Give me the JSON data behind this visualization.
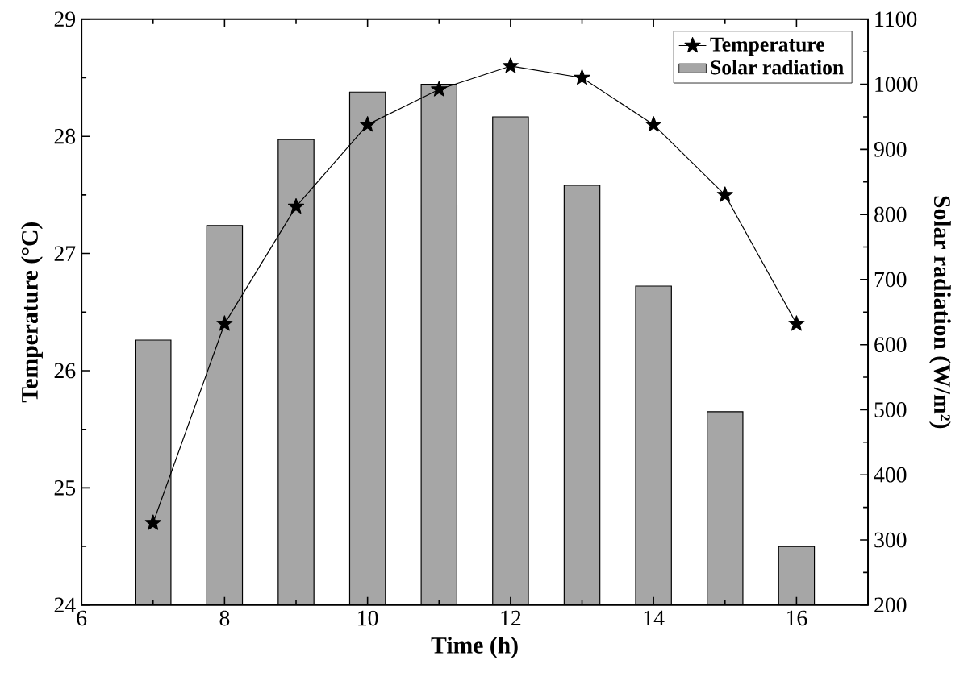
{
  "chart_data": {
    "type": "bar",
    "xlabel": "Time (h)",
    "ylabel": "Temperature (°C)",
    "y2label": "Solar radiation (W/m²)",
    "x": [
      7,
      8,
      9,
      10,
      11,
      12,
      13,
      14,
      15,
      16
    ],
    "series": [
      {
        "name": "Temperature",
        "type": "line",
        "color": "#000000",
        "marker": "star",
        "values": [
          24.7,
          26.4,
          27.4,
          28.1,
          28.4,
          28.6,
          28.5,
          28.1,
          27.5,
          26.4
        ]
      },
      {
        "name": "Solar radiation",
        "axis": "y2",
        "color": "#a6a6a6",
        "values": [
          607,
          783,
          915,
          988,
          1000,
          950,
          845,
          690,
          497,
          290
        ]
      }
    ],
    "xlim": [
      6,
      17
    ],
    "xticks": [
      6,
      8,
      10,
      12,
      14,
      16
    ],
    "ylim": [
      24,
      29
    ],
    "yticks": [
      24,
      25,
      26,
      27,
      28,
      29
    ],
    "y2lim": [
      200,
      1100
    ],
    "y2ticks": [
      200,
      300,
      400,
      500,
      600,
      700,
      800,
      900,
      1000,
      1100
    ],
    "legend": "top right"
  }
}
